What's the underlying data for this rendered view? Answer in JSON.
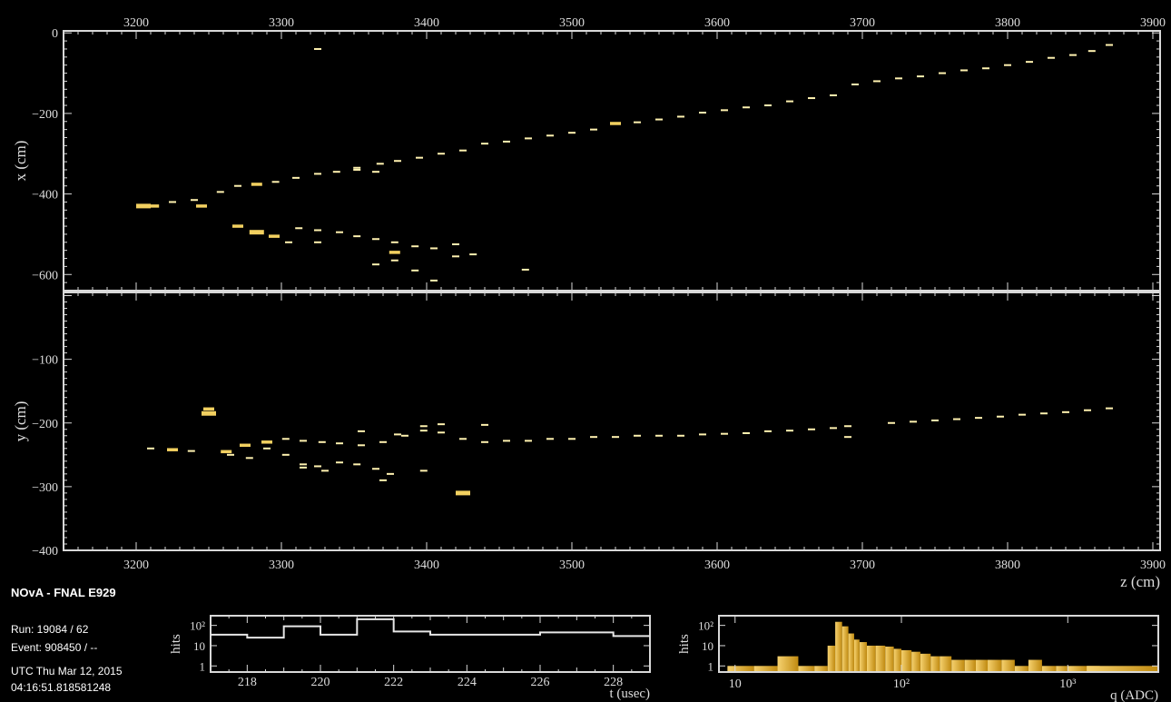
{
  "info": {
    "experiment": "NOvA - FNAL E929",
    "run": "Run:   19084 / 62",
    "event": "Event: 908450 / --",
    "utc_line1": "UTC Thu Mar 12, 2015",
    "utc_line2": "04:16:51.818581248"
  },
  "colors": {
    "background": "#000000",
    "axis": "#d8d8d8",
    "hit": "#f2d060",
    "hit_bright": "#fff2b0",
    "histogram_line": "#e6e6e6",
    "charge_fill": "#f0c040"
  },
  "chart_data": [
    {
      "type": "scatter",
      "name": "xz-view",
      "xlabel": "",
      "ylabel": "x (cm)",
      "xlim": [
        3150,
        3905
      ],
      "ylim": [
        -640,
        5
      ],
      "x_ticks": [
        3200,
        3300,
        3400,
        3500,
        3600,
        3700,
        3800,
        3900
      ],
      "y_ticks": [
        0,
        -200,
        -400,
        -600
      ],
      "hits": [
        [
          3205,
          -430,
          3
        ],
        [
          3212,
          -430,
          2
        ],
        [
          3225,
          -420,
          1
        ],
        [
          3240,
          -415,
          1
        ],
        [
          3245,
          -430,
          2
        ],
        [
          3258,
          -395,
          1
        ],
        [
          3270,
          -380,
          1
        ],
        [
          3283,
          -376,
          2
        ],
        [
          3296,
          -370,
          1
        ],
        [
          3310,
          -360,
          1
        ],
        [
          3325,
          -350,
          1
        ],
        [
          3338,
          -345,
          1
        ],
        [
          3352,
          -335,
          1
        ],
        [
          3368,
          -325,
          1
        ],
        [
          3380,
          -318,
          1
        ],
        [
          3395,
          -310,
          1
        ],
        [
          3410,
          -300,
          1
        ],
        [
          3425,
          -292,
          1
        ],
        [
          3440,
          -275,
          1
        ],
        [
          3455,
          -270,
          1
        ],
        [
          3470,
          -262,
          1
        ],
        [
          3485,
          -255,
          1
        ],
        [
          3500,
          -248,
          1
        ],
        [
          3515,
          -240,
          1
        ],
        [
          3530,
          -225,
          2
        ],
        [
          3545,
          -222,
          1
        ],
        [
          3560,
          -215,
          1
        ],
        [
          3575,
          -208,
          1
        ],
        [
          3590,
          -198,
          1
        ],
        [
          3605,
          -192,
          1
        ],
        [
          3620,
          -185,
          1
        ],
        [
          3635,
          -180,
          1
        ],
        [
          3650,
          -170,
          1
        ],
        [
          3665,
          -162,
          1
        ],
        [
          3680,
          -155,
          1
        ],
        [
          3695,
          -128,
          1
        ],
        [
          3710,
          -120,
          1
        ],
        [
          3725,
          -113,
          1
        ],
        [
          3740,
          -108,
          1
        ],
        [
          3755,
          -100,
          1
        ],
        [
          3770,
          -93,
          1
        ],
        [
          3785,
          -88,
          1
        ],
        [
          3800,
          -80,
          1
        ],
        [
          3815,
          -72,
          1
        ],
        [
          3830,
          -62,
          1
        ],
        [
          3845,
          -55,
          1
        ],
        [
          3858,
          -45,
          1
        ],
        [
          3870,
          -30,
          1
        ],
        [
          3325,
          -40,
          1
        ],
        [
          3270,
          -480,
          2
        ],
        [
          3283,
          -495,
          3
        ],
        [
          3295,
          -505,
          2
        ],
        [
          3312,
          -485,
          1
        ],
        [
          3325,
          -490,
          1
        ],
        [
          3340,
          -495,
          1
        ],
        [
          3352,
          -505,
          1
        ],
        [
          3365,
          -512,
          1
        ],
        [
          3378,
          -520,
          1
        ],
        [
          3392,
          -530,
          1
        ],
        [
          3405,
          -535,
          1
        ],
        [
          3420,
          -525,
          1
        ],
        [
          3432,
          -550,
          1
        ],
        [
          3378,
          -545,
          2
        ],
        [
          3365,
          -575,
          1
        ],
        [
          3378,
          -565,
          1
        ],
        [
          3392,
          -590,
          1
        ],
        [
          3405,
          -615,
          1
        ],
        [
          3468,
          -588,
          1
        ],
        [
          3420,
          -555,
          1
        ],
        [
          3365,
          -345,
          1
        ],
        [
          3352,
          -340,
          1
        ],
        [
          3325,
          -520,
          1
        ],
        [
          3305,
          -520,
          1
        ]
      ]
    },
    {
      "type": "scatter",
      "name": "yz-view",
      "xlabel": "z (cm)",
      "ylabel": "y (cm)",
      "xlim": [
        3150,
        3905
      ],
      "ylim": [
        -400,
        5
      ],
      "x_ticks": [
        3200,
        3300,
        3400,
        3500,
        3600,
        3700,
        3800,
        3900
      ],
      "y_ticks": [
        -100,
        -200,
        -300,
        -400
      ],
      "hits": [
        [
          3210,
          -240,
          1
        ],
        [
          3225,
          -242,
          2
        ],
        [
          3238,
          -244,
          1
        ],
        [
          3250,
          -185,
          3
        ],
        [
          3250,
          -178,
          2
        ],
        [
          3262,
          -245,
          2
        ],
        [
          3275,
          -235,
          2
        ],
        [
          3290,
          -230,
          2
        ],
        [
          3303,
          -225,
          1
        ],
        [
          3315,
          -228,
          1
        ],
        [
          3328,
          -230,
          1
        ],
        [
          3340,
          -232,
          1
        ],
        [
          3355,
          -235,
          1
        ],
        [
          3370,
          -230,
          1
        ],
        [
          3385,
          -220,
          1
        ],
        [
          3398,
          -212,
          1
        ],
        [
          3410,
          -215,
          1
        ],
        [
          3425,
          -225,
          1
        ],
        [
          3440,
          -230,
          1
        ],
        [
          3455,
          -228,
          1
        ],
        [
          3470,
          -228,
          1
        ],
        [
          3485,
          -225,
          1
        ],
        [
          3500,
          -225,
          1
        ],
        [
          3515,
          -222,
          1
        ],
        [
          3530,
          -222,
          1
        ],
        [
          3545,
          -220,
          1
        ],
        [
          3560,
          -220,
          1
        ],
        [
          3575,
          -220,
          1
        ],
        [
          3590,
          -218,
          1
        ],
        [
          3605,
          -217,
          1
        ],
        [
          3620,
          -216,
          1
        ],
        [
          3635,
          -213,
          1
        ],
        [
          3650,
          -212,
          1
        ],
        [
          3665,
          -210,
          1
        ],
        [
          3680,
          -208,
          1
        ],
        [
          3690,
          -205,
          1
        ],
        [
          3720,
          -200,
          1
        ],
        [
          3735,
          -198,
          1
        ],
        [
          3750,
          -196,
          1
        ],
        [
          3765,
          -194,
          1
        ],
        [
          3780,
          -192,
          1
        ],
        [
          3795,
          -190,
          1
        ],
        [
          3810,
          -187,
          1
        ],
        [
          3825,
          -185,
          1
        ],
        [
          3840,
          -183,
          1
        ],
        [
          3855,
          -180,
          1
        ],
        [
          3870,
          -177,
          1
        ],
        [
          3265,
          -250,
          1
        ],
        [
          3278,
          -255,
          1
        ],
        [
          3290,
          -240,
          1
        ],
        [
          3303,
          -250,
          1
        ],
        [
          3315,
          -265,
          1
        ],
        [
          3325,
          -268,
          1
        ],
        [
          3340,
          -262,
          1
        ],
        [
          3352,
          -265,
          1
        ],
        [
          3365,
          -272,
          1
        ],
        [
          3375,
          -280,
          1
        ],
        [
          3398,
          -275,
          1
        ],
        [
          3425,
          -310,
          3
        ],
        [
          3370,
          -290,
          1
        ],
        [
          3330,
          -275,
          1
        ],
        [
          3315,
          -270,
          1
        ],
        [
          3690,
          -222,
          1
        ],
        [
          3398,
          -205,
          1
        ],
        [
          3410,
          -202,
          1
        ],
        [
          3440,
          -203,
          1
        ],
        [
          3355,
          -213,
          1
        ],
        [
          3380,
          -218,
          1
        ]
      ]
    },
    {
      "type": "line",
      "name": "time-histogram",
      "xlabel": "t (usec)",
      "ylabel": "hits",
      "scale": "log-y",
      "xlim": [
        217,
        229
      ],
      "ylim": [
        0.5,
        300
      ],
      "x_ticks": [
        218,
        220,
        222,
        224,
        226,
        228
      ],
      "y_ticks": [
        "1",
        "10",
        "10²"
      ],
      "bins": [
        {
          "x0": 217,
          "x1": 218,
          "y": 35
        },
        {
          "x0": 218,
          "x1": 219,
          "y": 25
        },
        {
          "x0": 219,
          "x1": 220,
          "y": 90
        },
        {
          "x0": 220,
          "x1": 221,
          "y": 35
        },
        {
          "x0": 221,
          "x1": 222,
          "y": 200
        },
        {
          "x0": 222,
          "x1": 223,
          "y": 50
        },
        {
          "x0": 223,
          "x1": 226,
          "y": 35
        },
        {
          "x0": 226,
          "x1": 228,
          "y": 45
        },
        {
          "x0": 228,
          "x1": 229,
          "y": 30
        }
      ]
    },
    {
      "type": "bar",
      "name": "charge-histogram",
      "xlabel": "q (ADC)",
      "ylabel": "hits",
      "scale": "log-x-log-y",
      "xlim": [
        8,
        3500
      ],
      "ylim": [
        0.5,
        300
      ],
      "x_ticks": [
        "10",
        "10²",
        "10³"
      ],
      "y_ticks": [
        "1",
        "10",
        "10²"
      ],
      "bins": [
        {
          "q": 9,
          "n": 1
        },
        {
          "q": 13,
          "n": 1
        },
        {
          "q": 18,
          "n": 3
        },
        {
          "q": 24,
          "n": 1
        },
        {
          "q": 30,
          "n": 1
        },
        {
          "q": 36,
          "n": 10
        },
        {
          "q": 40,
          "n": 150
        },
        {
          "q": 44,
          "n": 90
        },
        {
          "q": 48,
          "n": 40
        },
        {
          "q": 52,
          "n": 20
        },
        {
          "q": 56,
          "n": 15
        },
        {
          "q": 62,
          "n": 10
        },
        {
          "q": 70,
          "n": 10
        },
        {
          "q": 80,
          "n": 9
        },
        {
          "q": 90,
          "n": 7
        },
        {
          "q": 100,
          "n": 6
        },
        {
          "q": 115,
          "n": 5
        },
        {
          "q": 130,
          "n": 4
        },
        {
          "q": 150,
          "n": 3
        },
        {
          "q": 170,
          "n": 3
        },
        {
          "q": 200,
          "n": 2
        },
        {
          "q": 240,
          "n": 2
        },
        {
          "q": 280,
          "n": 2
        },
        {
          "q": 330,
          "n": 2
        },
        {
          "q": 400,
          "n": 2
        },
        {
          "q": 480,
          "n": 1
        },
        {
          "q": 580,
          "n": 2
        },
        {
          "q": 700,
          "n": 1
        },
        {
          "q": 850,
          "n": 1
        },
        {
          "q": 1000,
          "n": 1
        },
        {
          "q": 1300,
          "n": 1
        }
      ]
    }
  ]
}
